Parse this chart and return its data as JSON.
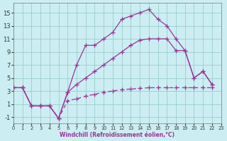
{
  "bg_color": "#cceef2",
  "line_color": "#993399",
  "grid_color": "#99cccc",
  "xlim": [
    0,
    23
  ],
  "ylim": [
    -2,
    16.5
  ],
  "xticks": [
    0,
    1,
    2,
    3,
    4,
    5,
    6,
    7,
    8,
    9,
    10,
    11,
    12,
    13,
    14,
    15,
    16,
    17,
    18,
    19,
    20,
    21,
    22,
    23
  ],
  "yticks": [
    -1,
    1,
    3,
    5,
    7,
    9,
    11,
    13,
    15
  ],
  "line1_x": [
    0,
    1,
    2,
    3,
    4,
    5,
    6,
    7,
    8,
    9,
    10,
    11,
    12,
    13,
    14,
    15,
    16,
    17,
    18,
    19,
    20,
    21,
    22
  ],
  "line1_y": [
    3.5,
    3.5,
    0.7,
    0.7,
    0.7,
    -1.2,
    2.8,
    7.0,
    10.0,
    10.0,
    11.0,
    12.0,
    14.0,
    14.5,
    15.0,
    15.5,
    14.0,
    13.0,
    11.0,
    9.2,
    5.0,
    6.0,
    4.0
  ],
  "line2_x": [
    0,
    1,
    2,
    3,
    4,
    5,
    6,
    7,
    8,
    9,
    10,
    11,
    12,
    13,
    14,
    15,
    16,
    17,
    18,
    19,
    20,
    21,
    22
  ],
  "line2_y": [
    3.5,
    3.5,
    0.7,
    0.7,
    0.7,
    -1.2,
    2.8,
    4.0,
    5.0,
    6.0,
    7.0,
    8.0,
    9.0,
    10.0,
    10.8,
    11.0,
    11.0,
    11.0,
    9.2,
    9.2,
    5.0,
    6.0,
    4.0
  ],
  "line3_x": [
    0,
    1,
    2,
    3,
    4,
    5,
    6,
    7,
    8,
    9,
    10,
    11,
    12,
    13,
    14,
    15,
    16,
    17,
    18,
    19,
    20,
    21,
    22
  ],
  "line3_y": [
    3.5,
    3.5,
    0.7,
    0.7,
    0.7,
    -1.2,
    1.5,
    1.8,
    2.2,
    2.5,
    2.8,
    3.0,
    3.2,
    3.3,
    3.4,
    3.5,
    3.5,
    3.5,
    3.5,
    3.5,
    3.5,
    3.5,
    3.5
  ],
  "xlabel": "Windchill (Refroidissement éolien,°C)"
}
